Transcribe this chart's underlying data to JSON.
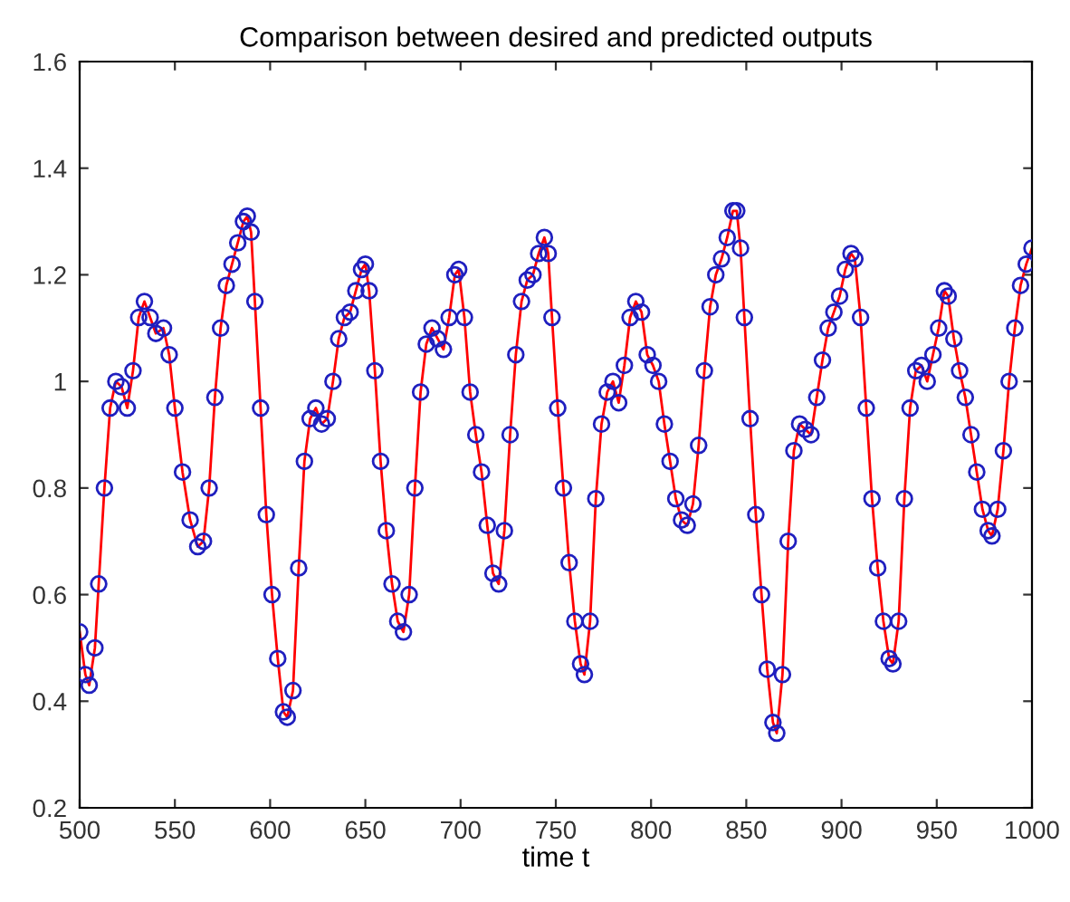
{
  "chart_data": {
    "type": "line",
    "title": "Comparison between desired and predicted outputs",
    "xlabel": "time t",
    "x": [
      500,
      503,
      505,
      508,
      510,
      513,
      516,
      519,
      522,
      525,
      528,
      531,
      534,
      537,
      540,
      544,
      547,
      550,
      554,
      558,
      562,
      565,
      568,
      571,
      574,
      577,
      580,
      583,
      586,
      588,
      590,
      592,
      595,
      598,
      601,
      604,
      607,
      609,
      612,
      615,
      618,
      621,
      624,
      627,
      630,
      633,
      636,
      639,
      642,
      645,
      648,
      650,
      652,
      655,
      658,
      661,
      664,
      667,
      670,
      673,
      676,
      679,
      682,
      685,
      688,
      691,
      694,
      697,
      699,
      702,
      705,
      708,
      711,
      714,
      717,
      720,
      723,
      726,
      729,
      732,
      735,
      738,
      741,
      744,
      746,
      748,
      751,
      754,
      757,
      760,
      763,
      765,
      768,
      771,
      774,
      777,
      780,
      783,
      786,
      789,
      792,
      795,
      798,
      801,
      804,
      807,
      810,
      813,
      816,
      819,
      822,
      825,
      828,
      831,
      834,
      837,
      840,
      843,
      845,
      847,
      849,
      852,
      855,
      858,
      861,
      864,
      866,
      869,
      872,
      875,
      878,
      881,
      884,
      887,
      890,
      893,
      896,
      899,
      902,
      905,
      907,
      910,
      913,
      916,
      919,
      922,
      925,
      927,
      930,
      933,
      936,
      939,
      942,
      945,
      948,
      951,
      954,
      956,
      959,
      962,
      965,
      968,
      971,
      974,
      977,
      979,
      982,
      985,
      988,
      991,
      994,
      997,
      1000
    ],
    "series": [
      {
        "color": "#ff0000",
        "marker": "none",
        "line_style": "solid",
        "values": [
          0.53,
          0.45,
          0.43,
          0.5,
          0.62,
          0.8,
          0.95,
          1.0,
          0.99,
          0.95,
          1.02,
          1.12,
          1.15,
          1.12,
          1.09,
          1.1,
          1.05,
          0.95,
          0.83,
          0.74,
          0.69,
          0.7,
          0.8,
          0.97,
          1.1,
          1.18,
          1.22,
          1.26,
          1.3,
          1.31,
          1.28,
          1.15,
          0.95,
          0.75,
          0.6,
          0.48,
          0.38,
          0.37,
          0.42,
          0.65,
          0.85,
          0.93,
          0.95,
          0.92,
          0.93,
          1.0,
          1.08,
          1.12,
          1.13,
          1.17,
          1.21,
          1.22,
          1.17,
          1.02,
          0.85,
          0.72,
          0.62,
          0.55,
          0.53,
          0.6,
          0.8,
          0.98,
          1.07,
          1.1,
          1.08,
          1.06,
          1.12,
          1.2,
          1.21,
          1.12,
          0.98,
          0.9,
          0.83,
          0.73,
          0.64,
          0.62,
          0.72,
          0.9,
          1.05,
          1.15,
          1.19,
          1.2,
          1.24,
          1.27,
          1.24,
          1.12,
          0.95,
          0.8,
          0.66,
          0.55,
          0.47,
          0.45,
          0.55,
          0.78,
          0.92,
          0.98,
          1.0,
          0.96,
          1.03,
          1.12,
          1.15,
          1.13,
          1.05,
          1.03,
          1.0,
          0.92,
          0.85,
          0.78,
          0.74,
          0.73,
          0.77,
          0.88,
          1.02,
          1.14,
          1.2,
          1.23,
          1.27,
          1.32,
          1.32,
          1.25,
          1.12,
          0.93,
          0.75,
          0.6,
          0.46,
          0.36,
          0.34,
          0.45,
          0.7,
          0.87,
          0.92,
          0.91,
          0.9,
          0.97,
          1.04,
          1.1,
          1.13,
          1.16,
          1.21,
          1.24,
          1.23,
          1.12,
          0.95,
          0.78,
          0.65,
          0.55,
          0.48,
          0.47,
          0.55,
          0.78,
          0.95,
          1.02,
          1.03,
          1.0,
          1.05,
          1.1,
          1.17,
          1.16,
          1.08,
          1.02,
          0.97,
          0.9,
          0.83,
          0.76,
          0.72,
          0.71,
          0.76,
          0.87,
          1.0,
          1.1,
          1.18,
          1.22,
          1.25
        ]
      },
      {
        "type": "scatter",
        "color": "#1f1fbf",
        "marker": "circle",
        "values": [
          0.53,
          0.45,
          0.43,
          0.5,
          0.62,
          0.8,
          0.95,
          1.0,
          0.99,
          0.95,
          1.02,
          1.12,
          1.15,
          1.12,
          1.09,
          1.1,
          1.05,
          0.95,
          0.83,
          0.74,
          0.69,
          0.7,
          0.8,
          0.97,
          1.1,
          1.18,
          1.22,
          1.26,
          1.3,
          1.31,
          1.28,
          1.15,
          0.95,
          0.75,
          0.6,
          0.48,
          0.38,
          0.37,
          0.42,
          0.65,
          0.85,
          0.93,
          0.95,
          0.92,
          0.93,
          1.0,
          1.08,
          1.12,
          1.13,
          1.17,
          1.21,
          1.22,
          1.17,
          1.02,
          0.85,
          0.72,
          0.62,
          0.55,
          0.53,
          0.6,
          0.8,
          0.98,
          1.07,
          1.1,
          1.08,
          1.06,
          1.12,
          1.2,
          1.21,
          1.12,
          0.98,
          0.9,
          0.83,
          0.73,
          0.64,
          0.62,
          0.72,
          0.9,
          1.05,
          1.15,
          1.19,
          1.2,
          1.24,
          1.27,
          1.24,
          1.12,
          0.95,
          0.8,
          0.66,
          0.55,
          0.47,
          0.45,
          0.55,
          0.78,
          0.92,
          0.98,
          1.0,
          0.96,
          1.03,
          1.12,
          1.15,
          1.13,
          1.05,
          1.03,
          1.0,
          0.92,
          0.85,
          0.78,
          0.74,
          0.73,
          0.77,
          0.88,
          1.02,
          1.14,
          1.2,
          1.23,
          1.27,
          1.32,
          1.32,
          1.25,
          1.12,
          0.93,
          0.75,
          0.6,
          0.46,
          0.36,
          0.34,
          0.45,
          0.7,
          0.87,
          0.92,
          0.91,
          0.9,
          0.97,
          1.04,
          1.1,
          1.13,
          1.16,
          1.21,
          1.24,
          1.23,
          1.12,
          0.95,
          0.78,
          0.65,
          0.55,
          0.48,
          0.47,
          0.55,
          0.78,
          0.95,
          1.02,
          1.03,
          1.0,
          1.05,
          1.1,
          1.17,
          1.16,
          1.08,
          1.02,
          0.97,
          0.9,
          0.83,
          0.76,
          0.72,
          0.71,
          0.76,
          0.87,
          1.0,
          1.1,
          1.18,
          1.22,
          1.25
        ]
      }
    ],
    "xlim": [
      500,
      1000
    ],
    "xticks": [
      500,
      550,
      600,
      650,
      700,
      750,
      800,
      850,
      900,
      950,
      1000
    ],
    "ylim": [
      0.2,
      1.6
    ],
    "yticks": [
      0.2,
      0.4,
      0.6,
      0.8,
      1,
      1.2,
      1.4,
      1.6
    ],
    "grid": false,
    "legend": false
  }
}
